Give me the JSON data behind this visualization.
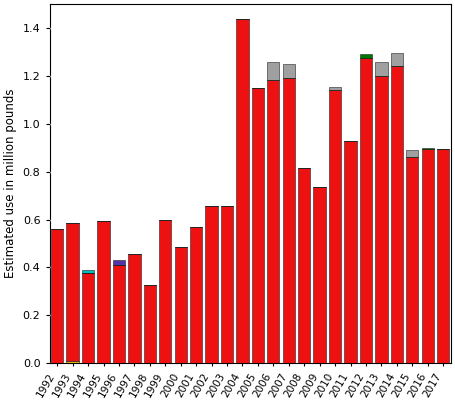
{
  "years": [
    "1992",
    "1993",
    "1994",
    "1995",
    "1996",
    "1997",
    "1998",
    "1999",
    "2000",
    "2001",
    "2002",
    "2003",
    "2004",
    "2005",
    "2006",
    "2007",
    "2008",
    "2009",
    "2010",
    "2011",
    "2012",
    "2013",
    "2014",
    "2015",
    "2016",
    "2017"
  ],
  "red_values": [
    0.56,
    0.575,
    0.375,
    0.595,
    0.41,
    0.455,
    0.325,
    0.6,
    0.485,
    0.57,
    0.655,
    0.655,
    1.44,
    1.15,
    1.185,
    1.19,
    0.815,
    0.735,
    1.14,
    0.93,
    1.275,
    1.2,
    1.24,
    0.86,
    0.895,
    0.895
  ],
  "cyan_values": [
    0.0,
    0.0,
    0.015,
    0.0,
    0.0,
    0.0,
    0.0,
    0.0,
    0.0,
    0.0,
    0.0,
    0.0,
    0.0,
    0.0,
    0.0,
    0.0,
    0.0,
    0.0,
    0.0,
    0.0,
    0.0,
    0.0,
    0.0,
    0.0,
    0.0,
    0.0
  ],
  "yellow_values": [
    0.0,
    0.01,
    0.0,
    0.0,
    0.0,
    0.0,
    0.0,
    0.0,
    0.0,
    0.0,
    0.0,
    0.0,
    0.0,
    0.0,
    0.0,
    0.0,
    0.0,
    0.0,
    0.0,
    0.0,
    0.0,
    0.0,
    0.0,
    0.0,
    0.0,
    0.0
  ],
  "purple_values": [
    0.0,
    0.0,
    0.0,
    0.0,
    0.02,
    0.0,
    0.0,
    0.0,
    0.0,
    0.0,
    0.0,
    0.0,
    0.0,
    0.0,
    0.0,
    0.0,
    0.0,
    0.0,
    0.0,
    0.0,
    0.0,
    0.0,
    0.0,
    0.0,
    0.0,
    0.0
  ],
  "gray_values": [
    0.0,
    0.0,
    0.0,
    0.0,
    0.0,
    0.0,
    0.0,
    0.0,
    0.0,
    0.0,
    0.0,
    0.0,
    0.0,
    0.0,
    0.075,
    0.06,
    0.0,
    0.0,
    0.015,
    0.0,
    0.0,
    0.06,
    0.055,
    0.03,
    0.0,
    0.0
  ],
  "green_values": [
    0.0,
    0.0,
    0.0,
    0.0,
    0.0,
    0.0,
    0.0,
    0.0,
    0.0,
    0.0,
    0.0,
    0.0,
    0.0,
    0.0,
    0.0,
    0.0,
    0.0,
    0.0,
    0.0,
    0.0,
    0.015,
    0.0,
    0.0,
    0.0,
    0.005,
    0.0
  ],
  "colors": {
    "red": "#ee1111",
    "cyan": "#00bfbf",
    "yellow": "#d4b800",
    "purple": "#5533aa",
    "gray": "#a0a0a0",
    "green": "#007700"
  },
  "ylabel": "Estimated use in million pounds",
  "ylim": [
    0,
    1.5
  ],
  "yticks": [
    0.0,
    0.2,
    0.4,
    0.6,
    0.8,
    1.0,
    1.2,
    1.4
  ],
  "background_color": "#ffffff",
  "bar_edge_color": "#222222",
  "bar_edge_width": 0.4
}
